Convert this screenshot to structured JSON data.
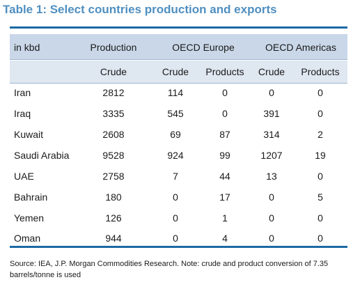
{
  "title": "Table 1: Select countries production and exports",
  "table": {
    "header_row1": {
      "unit_label": "in kbd",
      "production": "Production",
      "oecd_europe": "OECD Europe",
      "oecd_americas": "OECD Americas"
    },
    "header_row2": [
      "Crude",
      "Crude",
      "Products",
      "Crude",
      "Products"
    ],
    "rows": [
      {
        "country": "Iran",
        "values": [
          "2812",
          "114",
          "0",
          "0",
          "0"
        ]
      },
      {
        "country": "Iraq",
        "values": [
          "3335",
          "545",
          "0",
          "391",
          "0"
        ]
      },
      {
        "country": "Kuwait",
        "values": [
          "2608",
          "69",
          "87",
          "314",
          "2"
        ]
      },
      {
        "country": "Saudi Arabia",
        "values": [
          "9528",
          "924",
          "99",
          "1207",
          "19"
        ]
      },
      {
        "country": "UAE",
        "values": [
          "2758",
          "7",
          "44",
          "13",
          "0"
        ]
      },
      {
        "country": "Bahrain",
        "values": [
          "180",
          "0",
          "17",
          "0",
          "5"
        ]
      },
      {
        "country": "Yemen",
        "values": [
          "126",
          "0",
          "1",
          "0",
          "0"
        ]
      },
      {
        "country": "Oman",
        "values": [
          "944",
          "0",
          "4",
          "0",
          "0"
        ]
      }
    ]
  },
  "source": "Source: IEA, J.P. Morgan Commodities Research. Note: crude and product conversion of 7.35 barrels/tonne is used"
}
